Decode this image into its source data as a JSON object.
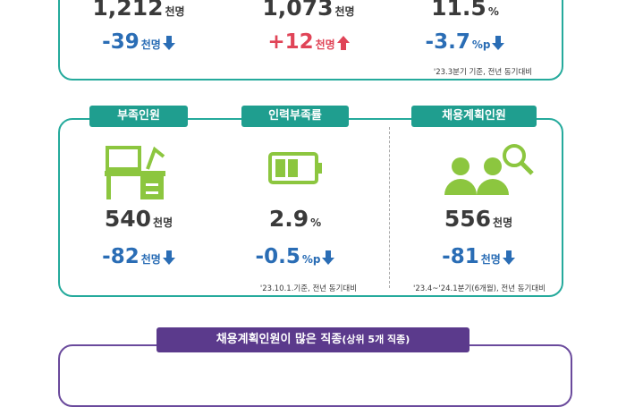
{
  "top_stats": [
    {
      "value": "1,212",
      "unit": "천명",
      "change": "-39",
      "change_unit": "천명"
    },
    {
      "value": "1,073",
      "unit": "천명",
      "change": "+12",
      "change_unit": "천명"
    },
    {
      "value": "11.5",
      "unit": "%",
      "change": "-3.7",
      "change_unit": "%p"
    }
  ],
  "top_note": "'23.3분기 기준, 전년 동기대비",
  "middle_stats": [
    {
      "label": "부족인원",
      "value": "540",
      "unit": "천명",
      "change": "-82",
      "change_unit": "천명"
    },
    {
      "label": "인력부족률",
      "value": "2.9",
      "unit": "%",
      "change": "-0.5",
      "change_unit": "%p"
    },
    {
      "label": "채용계획인원",
      "value": "556",
      "unit": "천명",
      "change": "-81",
      "change_unit": "천명"
    }
  ],
  "middle_notes": [
    "'23.10.1.기준, 전년 동기대비",
    "'23.4~'24.1분기(6개월), 전년 동기대비"
  ],
  "bottom_banner": {
    "title": "채용계획인원이 많은 직종",
    "subtitle": "(상위 5개 직종)"
  }
}
